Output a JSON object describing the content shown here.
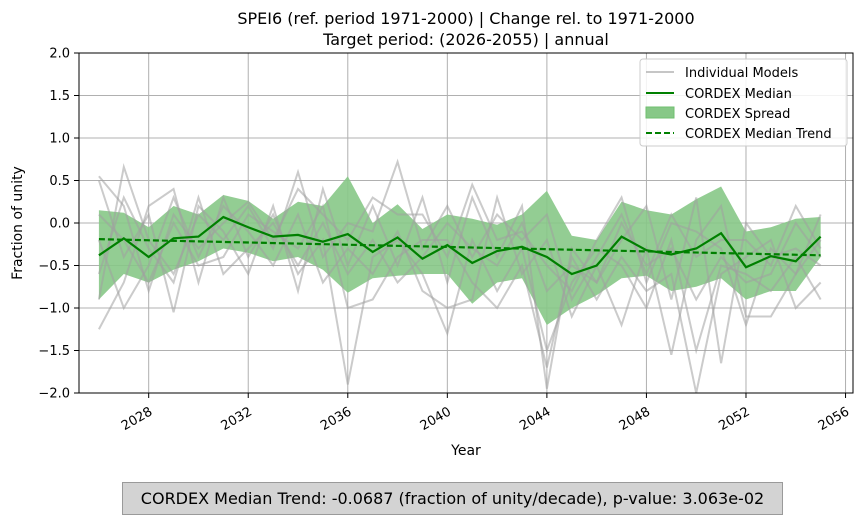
{
  "chart_data": {
    "type": "line",
    "title": "SPEI6 (ref. period 1971-2000) | Change rel. to 1971-2000",
    "subtitle": "Target period: (2026-2055) | annual",
    "xlabel": "Year",
    "ylabel": "Fraction of unity",
    "xlim": [
      2025.2,
      2056.3
    ],
    "ylim": [
      -2.0,
      2.0
    ],
    "xticks": [
      2028,
      2032,
      2036,
      2040,
      2044,
      2048,
      2052,
      2056
    ],
    "yticks": [
      -2.0,
      -1.5,
      -1.0,
      -0.5,
      0.0,
      0.5,
      1.0,
      1.5,
      2.0
    ],
    "yticklabels": [
      "−2.0",
      "−1.5",
      "−1.0",
      "−0.5",
      "0.0",
      "0.5",
      "1.0",
      "1.5",
      "2.0"
    ],
    "grid": true,
    "legend_position": "top-right",
    "legend": [
      "Individual Models",
      "CORDEX Median",
      "CORDEX Spread",
      "CORDEX Median Trend"
    ],
    "x": [
      2026,
      2027,
      2028,
      2029,
      2030,
      2031,
      2032,
      2033,
      2034,
      2035,
      2036,
      2037,
      2038,
      2039,
      2040,
      2041,
      2042,
      2043,
      2044,
      2045,
      2046,
      2047,
      2048,
      2049,
      2050,
      2051,
      2052,
      2053,
      2054,
      2055
    ],
    "median": [
      -0.38,
      -0.18,
      -0.4,
      -0.18,
      -0.16,
      0.07,
      -0.05,
      -0.16,
      -0.14,
      -0.22,
      -0.13,
      -0.34,
      -0.17,
      -0.42,
      -0.26,
      -0.47,
      -0.33,
      -0.28,
      -0.4,
      -0.6,
      -0.5,
      -0.16,
      -0.32,
      -0.37,
      -0.3,
      -0.12,
      -0.52,
      -0.39,
      -0.45,
      -0.16
    ],
    "spread_upper": [
      0.15,
      0.12,
      -0.05,
      0.2,
      0.1,
      0.33,
      0.26,
      0.05,
      0.25,
      0.2,
      0.55,
      0.0,
      0.22,
      -0.07,
      0.1,
      0.05,
      -0.02,
      0.1,
      0.38,
      -0.15,
      -0.2,
      0.25,
      0.15,
      0.1,
      0.28,
      0.43,
      -0.1,
      -0.05,
      0.05,
      0.07
    ],
    "spread_lower": [
      -0.9,
      -0.6,
      -0.7,
      -0.55,
      -0.45,
      -0.3,
      -0.35,
      -0.45,
      -0.4,
      -0.55,
      -0.82,
      -0.65,
      -0.62,
      -0.6,
      -0.6,
      -0.95,
      -0.7,
      -0.65,
      -1.2,
      -1.0,
      -0.85,
      -0.65,
      -0.62,
      -0.8,
      -0.75,
      -0.65,
      -0.9,
      -0.8,
      -0.8,
      -0.4
    ],
    "trend_start": -0.19,
    "trend_end": -0.38,
    "models": [
      [
        0.55,
        0.2,
        -0.8,
        0.1,
        -0.3,
        0.0,
        0.25,
        -0.2,
        0.4,
        0.1,
        -0.2,
        0.3,
        0.1,
        0.1,
        -0.4,
        0.45,
        -0.2,
        -0.1,
        -0.5,
        -0.8,
        -0.2,
        0.3,
        -0.7,
        0.0,
        -0.1,
        -0.3,
        -1.2,
        -0.3,
        -0.6,
        0.1
      ],
      [
        -1.25,
        -0.7,
        0.2,
        0.4,
        -0.7,
        0.3,
        -0.4,
        0.1,
        -0.6,
        -0.2,
        -1.9,
        -0.4,
        -0.2,
        -0.6,
        -1.3,
        -0.2,
        -0.8,
        -0.3,
        -1.5,
        -0.7,
        -0.3,
        -0.5,
        -1.0,
        -0.2,
        -1.5,
        -0.5,
        -0.6,
        -0.8,
        -0.4,
        -0.9
      ],
      [
        -0.9,
        0.66,
        -0.2,
        -0.6,
        0.1,
        -0.2,
        0.2,
        -0.3,
        0.6,
        -0.4,
        0.0,
        -0.1,
        0.72,
        -0.3,
        0.2,
        -0.4,
        0.1,
        -0.2,
        0.1,
        -0.9,
        -0.4,
        0.1,
        -0.6,
        0.1,
        -0.4,
        -0.2,
        -0.2,
        -0.5,
        0.2,
        -0.3
      ],
      [
        0.5,
        -0.4,
        0.1,
        -1.05,
        0.2,
        -0.1,
        -0.6,
        0.2,
        -0.8,
        0.4,
        -0.5,
        0.2,
        -0.5,
        0.3,
        -0.7,
        0.3,
        -0.4,
        0.2,
        -1.95,
        -0.3,
        -0.7,
        -0.2,
        0.2,
        -0.9,
        0.3,
        -1.65,
        0.0,
        -0.4,
        -0.3,
        -0.5
      ],
      [
        -0.2,
        -1.0,
        -0.5,
        0.3,
        -0.4,
        0.2,
        -0.1,
        -0.5,
        0.1,
        -0.7,
        -0.3,
        -0.6,
        -0.1,
        -0.8,
        -1.0,
        -0.9,
        0.3,
        -0.6,
        -0.2,
        -1.1,
        -0.5,
        -1.2,
        -0.3,
        -1.55,
        -0.2,
        0.2,
        -1.1,
        -1.1,
        -0.6,
        -0.2
      ],
      [
        0.1,
        -0.2,
        -0.7,
        0.0,
        -0.5,
        -0.4,
        0.1,
        -0.1,
        -0.3,
        0.2,
        -1.0,
        -0.9,
        -0.4,
        -0.2,
        -0.2,
        -0.7,
        -1.0,
        -0.5,
        -1.7,
        -0.4,
        -0.9,
        -0.4,
        -0.8,
        -0.6,
        -2.05,
        -0.6,
        -0.4,
        -0.2,
        -1.0,
        -0.7
      ],
      [
        -0.6,
        0.3,
        -0.3,
        -0.7,
        0.3,
        -0.6,
        -0.3,
        0.0,
        -0.5,
        0.0,
        -0.6,
        -0.2,
        -0.7,
        -0.4,
        0.0,
        -0.3,
        -0.5,
        0.0,
        -0.8,
        -0.5,
        -0.7,
        0.0,
        -0.5,
        -0.3,
        -0.9,
        -0.4,
        -0.7,
        -0.6,
        0.0,
        -0.4
      ]
    ]
  },
  "footer": {
    "text": "CORDEX Median Trend: -0.0687 (fraction of unity/decade), p-value: 3.063e-02"
  },
  "colors": {
    "median": "#008000",
    "spread": "#87c887",
    "models": "#a0a0a0",
    "grid": "#b0b0b0"
  }
}
